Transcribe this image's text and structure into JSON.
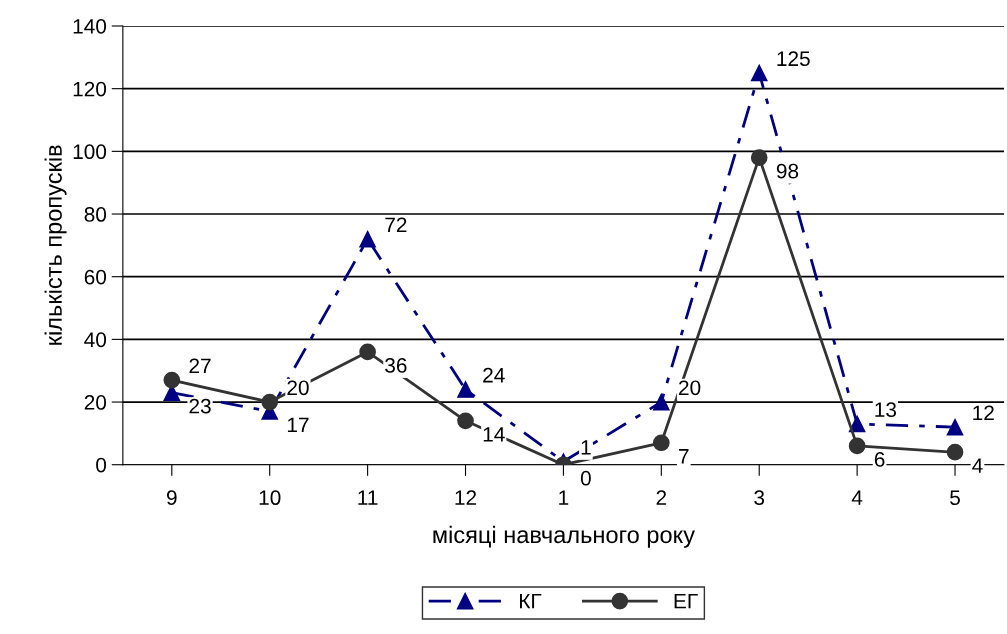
{
  "chart_data": {
    "type": "line",
    "xlabel": "місяці навчального року",
    "ylabel": "кількість пропусків",
    "categories": [
      "9",
      "10",
      "11",
      "12",
      "1",
      "2",
      "3",
      "4",
      "5"
    ],
    "series": [
      {
        "name": "КГ",
        "color": "#000080",
        "values": [
          23,
          17,
          72,
          24,
          1,
          20,
          125,
          13,
          12
        ],
        "marker": "triangle",
        "line_style": "dashed"
      },
      {
        "name": "ЕГ",
        "color": "#333333",
        "values": [
          27,
          20,
          36,
          14,
          0,
          7,
          98,
          6,
          4
        ],
        "marker": "circle",
        "line_style": "solid"
      }
    ],
    "ylim": [
      0,
      140
    ],
    "yticks": [
      0,
      20,
      40,
      60,
      80,
      100,
      120,
      140
    ],
    "grid": "y",
    "legend": "bottom",
    "data_labels": true
  }
}
